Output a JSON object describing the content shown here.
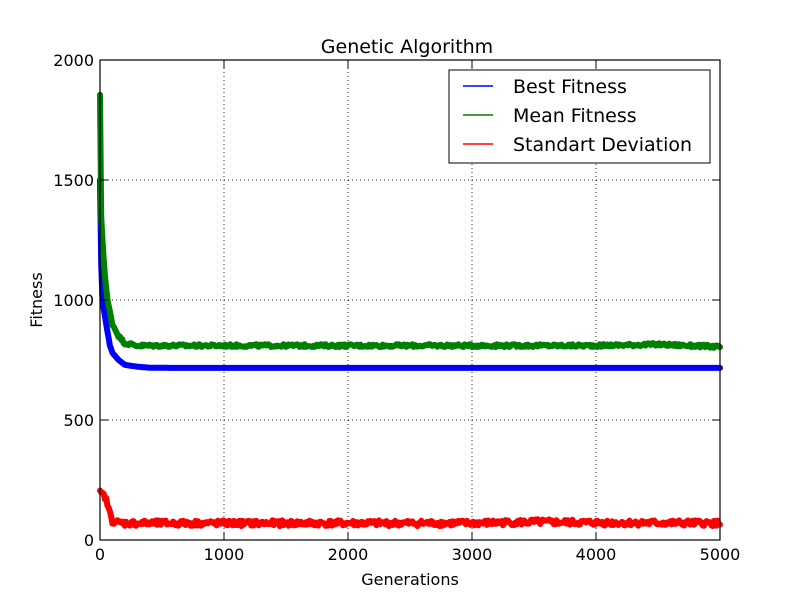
{
  "chart_data": {
    "type": "line",
    "title": "Genetic Algorithm",
    "xlabel": "Generations",
    "ylabel": "Fitness",
    "xlim": [
      0,
      5000
    ],
    "ylim": [
      0,
      2000
    ],
    "xticks": [
      0,
      1000,
      2000,
      3000,
      4000,
      5000
    ],
    "yticks": [
      0,
      500,
      1000,
      1500,
      2000
    ],
    "xtick_labels": [
      "0",
      "1000",
      "2000",
      "3000",
      "4000",
      "5000"
    ],
    "ytick_labels": [
      "0",
      "500",
      "1000",
      "1500",
      "2000"
    ],
    "grid": true,
    "legend_position": "top-right",
    "series": [
      {
        "name": "Best Fitness",
        "color": "#0000ff",
        "x": [
          0,
          10,
          20,
          40,
          60,
          80,
          100,
          150,
          200,
          300,
          400,
          600,
          1000,
          2000,
          3000,
          4000,
          5000
        ],
        "y": [
          1500,
          1150,
          1000,
          930,
          870,
          810,
          780,
          750,
          730,
          722,
          718,
          717,
          717,
          717,
          717,
          717,
          717
        ]
      },
      {
        "name": "Mean Fitness",
        "color": "#008000",
        "x": [
          0,
          5,
          10,
          20,
          40,
          60,
          80,
          100,
          150,
          200,
          300,
          500,
          1000,
          1500,
          2000,
          2500,
          3000,
          3500,
          4000,
          4500,
          5000
        ],
        "y": [
          1850,
          1550,
          1350,
          1250,
          1100,
          1000,
          950,
          900,
          850,
          820,
          810,
          810,
          810,
          810,
          810,
          810,
          810,
          810,
          810,
          815,
          805
        ]
      },
      {
        "name": "Standart Deviation",
        "color": "#ff0000",
        "x": [
          0,
          20,
          40,
          60,
          80,
          100,
          150,
          200,
          500,
          1000,
          2000,
          3000,
          3500,
          4000,
          5000
        ],
        "y": [
          195,
          190,
          180,
          150,
          110,
          80,
          72,
          70,
          70,
          70,
          70,
          70,
          75,
          72,
          70
        ]
      }
    ]
  }
}
